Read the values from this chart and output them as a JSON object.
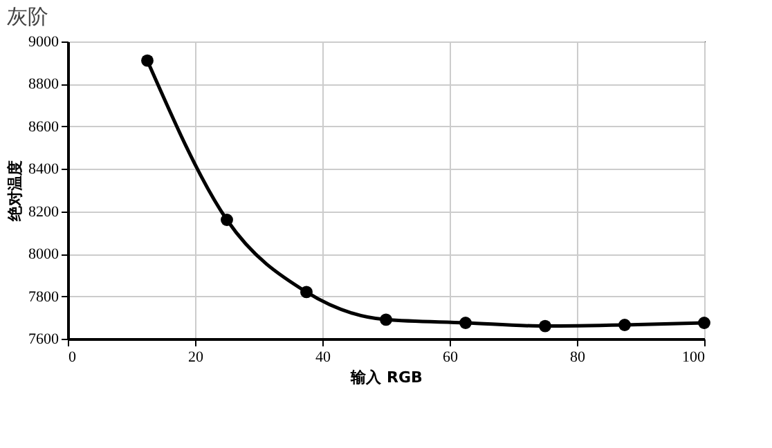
{
  "chart_data": {
    "type": "line",
    "title": "灰阶",
    "xlabel": "输入 RGB",
    "ylabel": "绝对温度",
    "x": [
      12.5,
      25,
      37.5,
      50,
      62.5,
      75,
      87.5,
      100
    ],
    "series": [
      {
        "color": "#000000",
        "values": [
          8910,
          8160,
          7820,
          7690,
          7675,
          7660,
          7665,
          7675
        ]
      }
    ],
    "xlim": [
      0,
      100
    ],
    "xticks": [
      0,
      20,
      40,
      60,
      80,
      100
    ],
    "ylim": [
      7600,
      9000
    ],
    "yticks": [
      7600,
      7800,
      8000,
      8200,
      8400,
      8600,
      8800,
      9000
    ],
    "grid": true,
    "marker": "circle",
    "line_style": "solid"
  }
}
